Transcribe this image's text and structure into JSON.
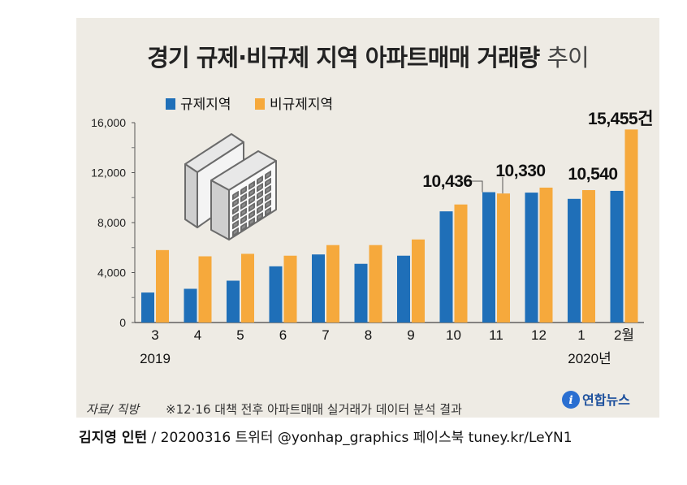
{
  "title": {
    "main": "경기 규제·비규제 지역 아파트매매 거래량",
    "suffix": "추이"
  },
  "chart_data": {
    "type": "bar",
    "categories": [
      "3",
      "4",
      "5",
      "6",
      "7",
      "8",
      "9",
      "10",
      "11",
      "12",
      "1",
      "2월"
    ],
    "year_labels": [
      "2019",
      "2020년"
    ],
    "series": [
      {
        "name": "규제지역",
        "color": "#1f6fb8",
        "values": [
          2400,
          2700,
          3350,
          4500,
          5450,
          4700,
          5350,
          8900,
          10436,
          10400,
          9900,
          10540
        ]
      },
      {
        "name": "비규제지역",
        "color": "#f6a93c",
        "values": [
          5800,
          5300,
          5500,
          5350,
          6200,
          6200,
          6650,
          9450,
          10330,
          10800,
          10600,
          15455
        ]
      }
    ],
    "ylim": [
      0,
      16000
    ],
    "yticks": [
      "0",
      "4,000",
      "8,000",
      "12,000",
      "16,000"
    ],
    "annotations": [
      "10,436",
      "10,330",
      "10,540",
      "15,455건"
    ],
    "legend": "top-left"
  },
  "footer": {
    "source": "자료/ 직방",
    "note": "※12·16 대책 전후 아파트매매 실거래가 데이터 분석 결과",
    "logo_text": "연합뉴스"
  },
  "byline": {
    "author": "김지영 인턴",
    "rest": " / 20200316 트위터 @yonhap_graphics 페이스북 tuney.kr/LeYN1"
  }
}
